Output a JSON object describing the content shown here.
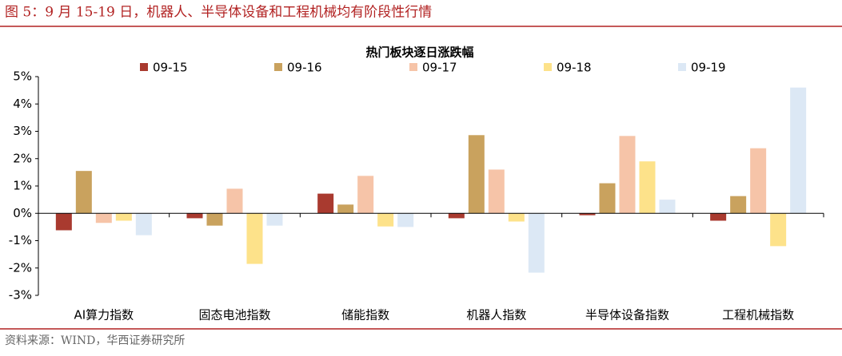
{
  "header": {
    "title": "图 5：9 月 15-19 日，机器人、半导体设备和工程机械均有阶段性行情"
  },
  "source": "资料来源：WIND，华西证券研究所",
  "chart_data": {
    "type": "bar",
    "title": "热门板块逐日涨跌幅",
    "categories": [
      "AI算力指数",
      "固态电池指数",
      "储能指数",
      "机器人指数",
      "半导体设备指数",
      "工程机械指数"
    ],
    "series": [
      {
        "name": "09-15",
        "color": "#a93a2f",
        "values": [
          -0.62,
          -0.18,
          0.72,
          -0.18,
          -0.07,
          -0.27
        ]
      },
      {
        "name": "09-16",
        "color": "#c9a25e",
        "values": [
          1.55,
          -0.45,
          0.32,
          2.86,
          1.1,
          0.63
        ]
      },
      {
        "name": "09-17",
        "color": "#f6c4a8",
        "values": [
          -0.35,
          0.9,
          1.37,
          1.6,
          2.83,
          2.38
        ]
      },
      {
        "name": "09-18",
        "color": "#fde28a",
        "values": [
          -0.27,
          -1.85,
          -0.48,
          -0.3,
          1.9,
          -1.2
        ]
      },
      {
        "name": "09-19",
        "color": "#dce8f5",
        "values": [
          -0.8,
          -0.45,
          -0.5,
          -2.17,
          0.5,
          4.6
        ]
      }
    ],
    "ylim": [
      -3,
      5
    ],
    "yticks": [
      {
        "value": -3,
        "label": "-3%"
      },
      {
        "value": -2,
        "label": "-2%"
      },
      {
        "value": -1,
        "label": "-1%"
      },
      {
        "value": 0,
        "label": "0%"
      },
      {
        "value": 1,
        "label": "1%"
      },
      {
        "value": 2,
        "label": "2%"
      },
      {
        "value": 3,
        "label": "3%"
      },
      {
        "value": 4,
        "label": "4%"
      },
      {
        "value": 5,
        "label": "5%"
      }
    ],
    "legend": "top",
    "grid": false
  }
}
